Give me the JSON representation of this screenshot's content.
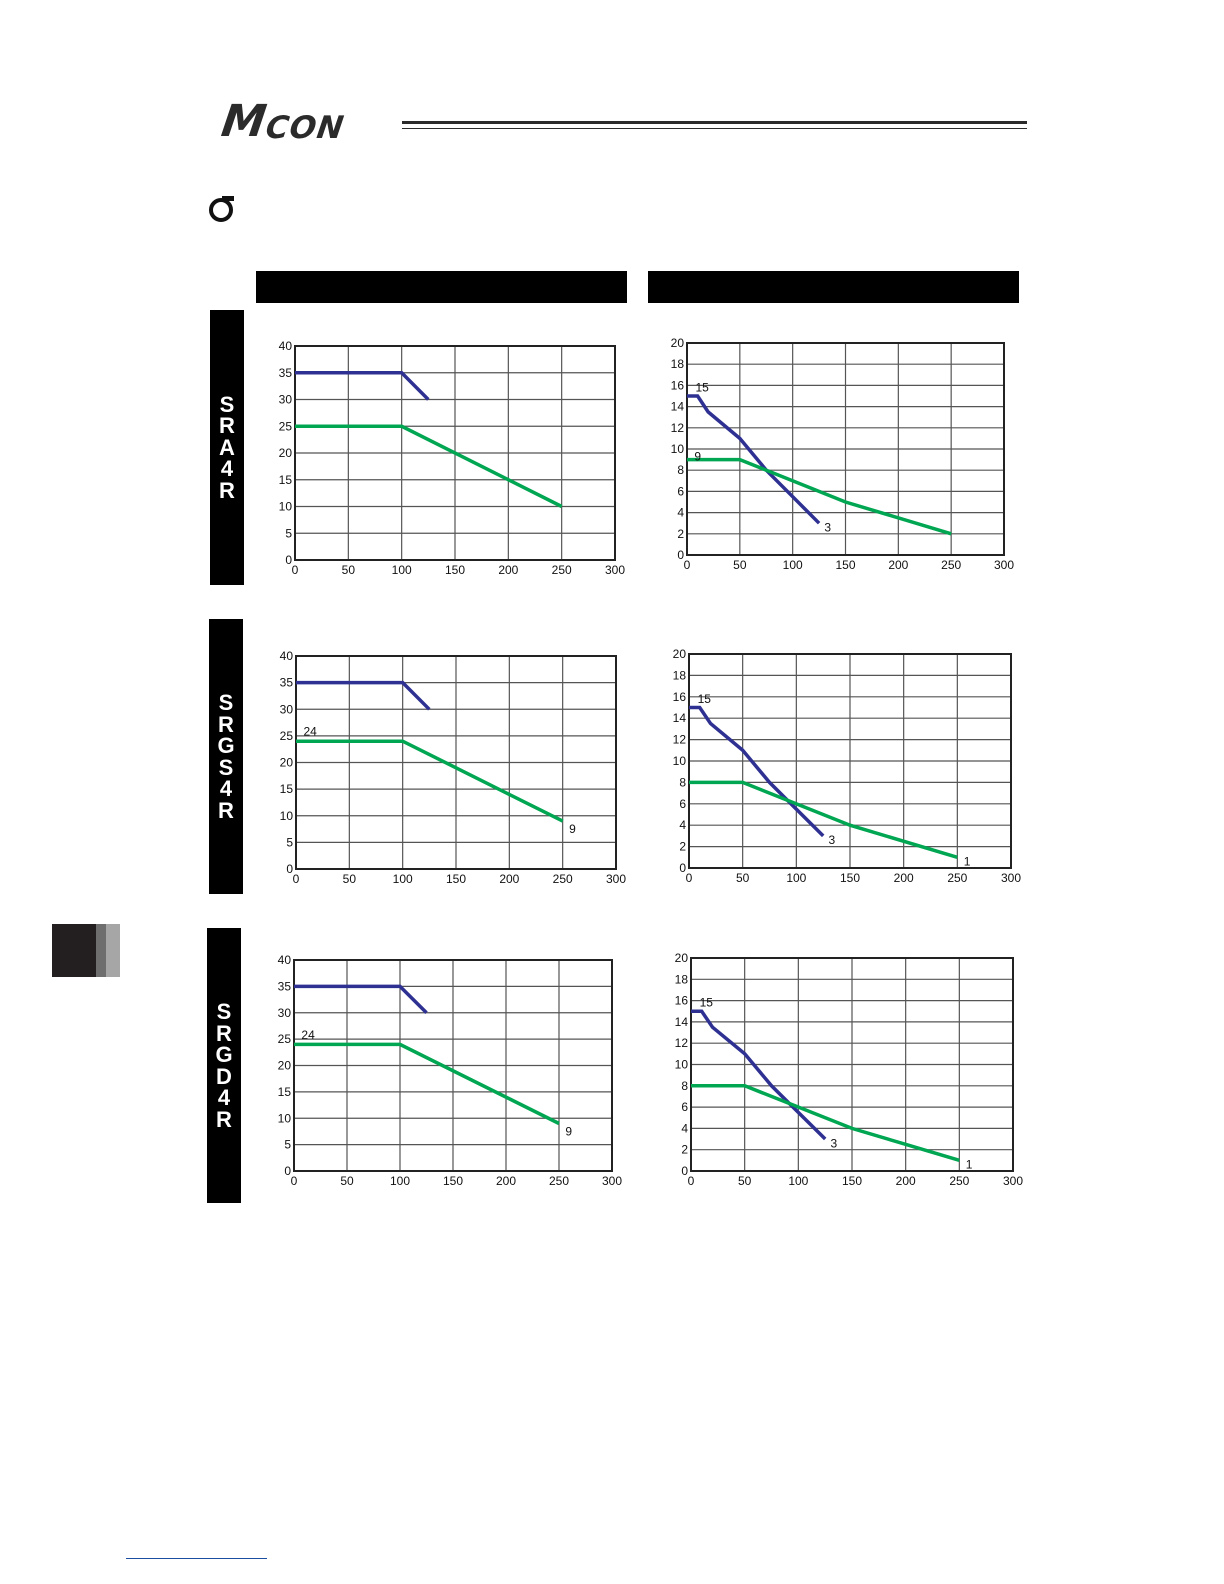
{
  "header": {
    "logo_text_big": "M",
    "logo_text_small": "CON"
  },
  "side_tabs": [
    "SRA4R",
    "SRGS4R",
    "SRGD4R"
  ],
  "colors": {
    "high_load_line": "#2e3192",
    "low_load_line": "#00a651",
    "grid": "#555555",
    "tab_bg": "#000000"
  },
  "chart_data": [
    {
      "id": "sra4r-left",
      "type": "line",
      "x_ticks": [
        0,
        50,
        100,
        150,
        200,
        250,
        300
      ],
      "y_ticks": [
        0,
        5,
        10,
        15,
        20,
        25,
        30,
        35,
        40
      ],
      "xlim": [
        0,
        300
      ],
      "ylim": [
        0,
        40
      ],
      "grid": true,
      "series": [
        {
          "color": "#2e3192",
          "x": [
            0,
            100,
            125
          ],
          "y": [
            35,
            35,
            30
          ]
        },
        {
          "color": "#00a651",
          "x": [
            0,
            100,
            250
          ],
          "y": [
            25,
            25,
            10
          ]
        }
      ],
      "annotations": []
    },
    {
      "id": "sra4r-right",
      "type": "line",
      "x_ticks": [
        0,
        50,
        100,
        150,
        200,
        250,
        300
      ],
      "y_ticks": [
        0,
        2,
        4,
        6,
        8,
        10,
        12,
        14,
        16,
        18,
        20
      ],
      "xlim": [
        0,
        300
      ],
      "ylim": [
        0,
        20
      ],
      "grid": true,
      "series": [
        {
          "color": "#2e3192",
          "x": [
            0,
            10,
            20,
            50,
            75,
            100,
            125
          ],
          "y": [
            15,
            15,
            13.5,
            11,
            8,
            5.5,
            3
          ]
        },
        {
          "color": "#00a651",
          "x": [
            0,
            50,
            150,
            250
          ],
          "y": [
            9,
            9,
            5,
            2
          ]
        }
      ],
      "annotations": [
        {
          "text": "15",
          "x": 8,
          "y": 15.8
        },
        {
          "text": "9",
          "x": 7,
          "y": 9.3
        },
        {
          "text": "3",
          "x": 130,
          "y": 2.6
        }
      ]
    },
    {
      "id": "srgs4r-left",
      "type": "line",
      "x_ticks": [
        0,
        50,
        100,
        150,
        200,
        250,
        300
      ],
      "y_ticks": [
        0,
        5,
        10,
        15,
        20,
        25,
        30,
        35,
        40
      ],
      "xlim": [
        0,
        300
      ],
      "ylim": [
        0,
        40
      ],
      "grid": true,
      "series": [
        {
          "color": "#2e3192",
          "x": [
            0,
            100,
            125
          ],
          "y": [
            35,
            35,
            30
          ]
        },
        {
          "color": "#00a651",
          "x": [
            0,
            100,
            250
          ],
          "y": [
            24,
            24,
            9
          ]
        }
      ],
      "annotations": [
        {
          "text": "24",
          "x": 7,
          "y": 25.8
        },
        {
          "text": "9",
          "x": 256,
          "y": 7.5
        }
      ]
    },
    {
      "id": "srgs4r-right",
      "type": "line",
      "x_ticks": [
        0,
        50,
        100,
        150,
        200,
        250,
        300
      ],
      "y_ticks": [
        0,
        2,
        4,
        6,
        8,
        10,
        12,
        14,
        16,
        18,
        20
      ],
      "xlim": [
        0,
        300
      ],
      "ylim": [
        0,
        20
      ],
      "grid": true,
      "series": [
        {
          "color": "#2e3192",
          "x": [
            0,
            10,
            20,
            50,
            75,
            100,
            125
          ],
          "y": [
            15,
            15,
            13.5,
            11,
            8,
            5.5,
            3
          ]
        },
        {
          "color": "#00a651",
          "x": [
            0,
            50,
            150,
            250
          ],
          "y": [
            8,
            8,
            4,
            1
          ]
        }
      ],
      "annotations": [
        {
          "text": "15",
          "x": 8,
          "y": 15.8
        },
        {
          "text": "3",
          "x": 130,
          "y": 2.6
        },
        {
          "text": "1",
          "x": 256,
          "y": 0.6
        }
      ]
    },
    {
      "id": "srgd4r-left",
      "type": "line",
      "x_ticks": [
        0,
        50,
        100,
        150,
        200,
        250,
        300
      ],
      "y_ticks": [
        0,
        5,
        10,
        15,
        20,
        25,
        30,
        35,
        40
      ],
      "xlim": [
        0,
        300
      ],
      "ylim": [
        0,
        40
      ],
      "grid": true,
      "series": [
        {
          "color": "#2e3192",
          "x": [
            0,
            100,
            125
          ],
          "y": [
            35,
            35,
            30
          ]
        },
        {
          "color": "#00a651",
          "x": [
            0,
            100,
            250
          ],
          "y": [
            24,
            24,
            9
          ]
        }
      ],
      "annotations": [
        {
          "text": "24",
          "x": 7,
          "y": 25.8
        },
        {
          "text": "9",
          "x": 256,
          "y": 7.5
        }
      ]
    },
    {
      "id": "srgd4r-right",
      "type": "line",
      "x_ticks": [
        0,
        50,
        100,
        150,
        200,
        250,
        300
      ],
      "y_ticks": [
        0,
        2,
        4,
        6,
        8,
        10,
        12,
        14,
        16,
        18,
        20
      ],
      "xlim": [
        0,
        300
      ],
      "ylim": [
        0,
        20
      ],
      "grid": true,
      "series": [
        {
          "color": "#2e3192",
          "x": [
            0,
            10,
            20,
            50,
            75,
            100,
            125
          ],
          "y": [
            15,
            15,
            13.5,
            11,
            8,
            5.5,
            3
          ]
        },
        {
          "color": "#00a651",
          "x": [
            0,
            50,
            150,
            250
          ],
          "y": [
            8,
            8,
            4,
            1
          ]
        }
      ],
      "annotations": [
        {
          "text": "15",
          "x": 8,
          "y": 15.8
        },
        {
          "text": "3",
          "x": 130,
          "y": 2.6
        },
        {
          "text": "1",
          "x": 256,
          "y": 0.6
        }
      ]
    }
  ]
}
